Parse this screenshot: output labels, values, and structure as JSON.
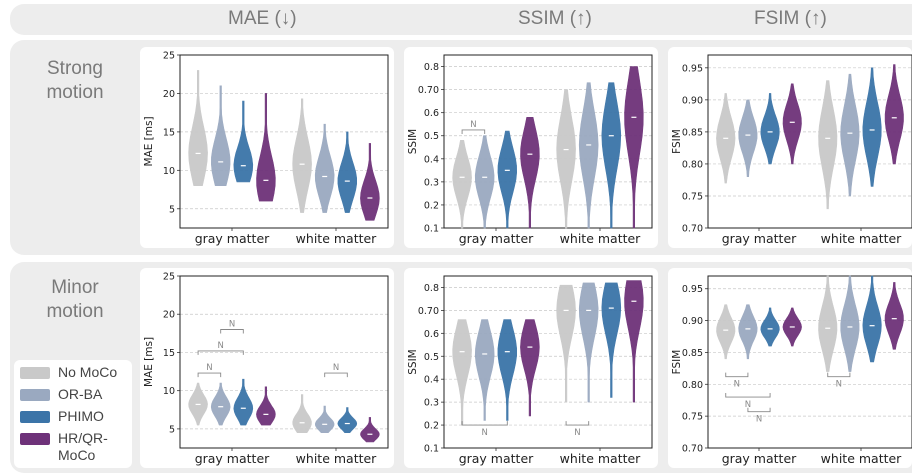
{
  "column_titles": [
    "MAE (↓)",
    "SSIM (↑)",
    "FSIM (↑)"
  ],
  "row_labels": [
    "Strong\nmotion",
    "Minor\nmotion"
  ],
  "legend": [
    {
      "label": "No MoCo",
      "color": "#c9c9c9"
    },
    {
      "label": "OR-BA",
      "color": "#9aa9c0"
    },
    {
      "label": "PHIMO",
      "color": "#3b74a8"
    },
    {
      "label": "HR/QR-\nMoCo",
      "color": "#6e3279"
    }
  ],
  "significance_label": "N",
  "chart_data": [
    {
      "type": "violin",
      "row": "Strong motion",
      "metric": "MAE (↓)",
      "ylabel": "MAE [ms]",
      "ylim": [
        2.5,
        25
      ],
      "yticks": [
        5,
        10,
        15,
        20,
        25
      ],
      "grid": true,
      "categories": [
        "gray matter",
        "white matter"
      ],
      "series": [
        {
          "name": "No MoCo",
          "values": [
            {
              "min": 8,
              "max": 23,
              "median": 12.2
            },
            {
              "min": 4.5,
              "max": 19.3,
              "median": 10.8
            }
          ]
        },
        {
          "name": "OR-BA",
          "values": [
            {
              "min": 8,
              "max": 21,
              "median": 11.1
            },
            {
              "min": 4.5,
              "max": 16,
              "median": 9.2
            }
          ]
        },
        {
          "name": "PHIMO",
          "values": [
            {
              "min": 8.5,
              "max": 19,
              "median": 10.6
            },
            {
              "min": 4.5,
              "max": 15,
              "median": 8.6
            }
          ]
        },
        {
          "name": "HR/QR-MoCo",
          "values": [
            {
              "min": 6,
              "max": 20,
              "median": 8.7
            },
            {
              "min": 3.5,
              "max": 13.5,
              "median": 6.4
            }
          ]
        }
      ],
      "significance": []
    },
    {
      "type": "violin",
      "row": "Strong motion",
      "metric": "SSIM (↑)",
      "ylabel": "SSIM",
      "ylim": [
        0.1,
        0.85
      ],
      "yticks": [
        0.1,
        0.2,
        0.3,
        0.4,
        0.5,
        0.6,
        0.7,
        0.8
      ],
      "grid": true,
      "categories": [
        "gray matter",
        "white matter"
      ],
      "series": [
        {
          "name": "No MoCo",
          "values": [
            {
              "min": 0.1,
              "max": 0.48,
              "median": 0.32
            },
            {
              "min": 0.1,
              "max": 0.7,
              "median": 0.44
            }
          ]
        },
        {
          "name": "OR-BA",
          "values": [
            {
              "min": 0.1,
              "max": 0.5,
              "median": 0.32
            },
            {
              "min": 0.1,
              "max": 0.73,
              "median": 0.46
            }
          ]
        },
        {
          "name": "PHIMO",
          "values": [
            {
              "min": 0.1,
              "max": 0.52,
              "median": 0.35
            },
            {
              "min": 0.1,
              "max": 0.73,
              "median": 0.5
            }
          ]
        },
        {
          "name": "HR/QR-MoCo",
          "values": [
            {
              "min": 0.1,
              "max": 0.58,
              "median": 0.42
            },
            {
              "min": 0.1,
              "max": 0.8,
              "median": 0.58
            }
          ]
        }
      ],
      "significance": [
        {
          "category": "gray matter",
          "between": [
            "No MoCo",
            "OR-BA"
          ],
          "level": 0.525,
          "label": "N"
        }
      ]
    },
    {
      "type": "violin",
      "row": "Strong motion",
      "metric": "FSIM (↑)",
      "ylabel": "FSIM",
      "ylim": [
        0.7,
        0.97
      ],
      "yticks": [
        0.7,
        0.75,
        0.8,
        0.85,
        0.9,
        0.95
      ],
      "grid": true,
      "categories": [
        "gray matter",
        "white matter"
      ],
      "series": [
        {
          "name": "No MoCo",
          "values": [
            {
              "min": 0.77,
              "max": 0.91,
              "median": 0.84
            },
            {
              "min": 0.73,
              "max": 0.93,
              "median": 0.84
            }
          ]
        },
        {
          "name": "OR-BA",
          "values": [
            {
              "min": 0.78,
              "max": 0.9,
              "median": 0.845
            },
            {
              "min": 0.75,
              "max": 0.94,
              "median": 0.848
            }
          ]
        },
        {
          "name": "PHIMO",
          "values": [
            {
              "min": 0.8,
              "max": 0.91,
              "median": 0.85
            },
            {
              "min": 0.765,
              "max": 0.95,
              "median": 0.853
            }
          ]
        },
        {
          "name": "HR/QR-MoCo",
          "values": [
            {
              "min": 0.8,
              "max": 0.925,
              "median": 0.865
            },
            {
              "min": 0.8,
              "max": 0.955,
              "median": 0.872
            }
          ]
        }
      ],
      "significance": []
    },
    {
      "type": "violin",
      "row": "Minor motion",
      "metric": "MAE (↓)",
      "ylabel": "MAE [ms]",
      "ylim": [
        2.5,
        25
      ],
      "yticks": [
        5,
        10,
        15,
        20,
        25
      ],
      "grid": true,
      "categories": [
        "gray matter",
        "white matter"
      ],
      "series": [
        {
          "name": "No MoCo",
          "values": [
            {
              "min": 5.5,
              "max": 11,
              "median": 8.2
            },
            {
              "min": 4.5,
              "max": 9.5,
              "median": 5.8
            }
          ]
        },
        {
          "name": "OR-BA",
          "values": [
            {
              "min": 5.5,
              "max": 11,
              "median": 7.9
            },
            {
              "min": 4.5,
              "max": 8,
              "median": 5.6
            }
          ]
        },
        {
          "name": "PHIMO",
          "values": [
            {
              "min": 5.5,
              "max": 11.5,
              "median": 7.7
            },
            {
              "min": 4.5,
              "max": 7.8,
              "median": 5.7
            }
          ]
        },
        {
          "name": "HR/QR-MoCo",
          "values": [
            {
              "min": 5.5,
              "max": 10.5,
              "median": 6.9
            },
            {
              "min": 3.3,
              "max": 6.5,
              "median": 4.3
            }
          ]
        }
      ],
      "significance": [
        {
          "category": "gray matter",
          "between": [
            "No MoCo",
            "OR-BA"
          ],
          "level": 12.3,
          "label": "N"
        },
        {
          "category": "gray matter",
          "between": [
            "No MoCo",
            "PHIMO"
          ],
          "level": 15.2,
          "label": "N"
        },
        {
          "category": "gray matter",
          "between": [
            "OR-BA",
            "PHIMO"
          ],
          "level": 18.0,
          "label": "N"
        },
        {
          "category": "white matter",
          "between": [
            "OR-BA",
            "PHIMO"
          ],
          "level": 12.3,
          "label": "N"
        }
      ]
    },
    {
      "type": "violin",
      "row": "Minor motion",
      "metric": "SSIM (↑)",
      "ylabel": "SSIM",
      "ylim": [
        0.1,
        0.85
      ],
      "yticks": [
        0.1,
        0.2,
        0.3,
        0.4,
        0.5,
        0.6,
        0.7,
        0.8
      ],
      "grid": true,
      "categories": [
        "gray matter",
        "white matter"
      ],
      "series": [
        {
          "name": "No MoCo",
          "values": [
            {
              "min": 0.2,
              "max": 0.66,
              "median": 0.52
            },
            {
              "min": 0.3,
              "max": 0.81,
              "median": 0.7
            }
          ]
        },
        {
          "name": "OR-BA",
          "values": [
            {
              "min": 0.22,
              "max": 0.66,
              "median": 0.51
            },
            {
              "min": 0.3,
              "max": 0.82,
              "median": 0.7
            }
          ]
        },
        {
          "name": "PHIMO",
          "values": [
            {
              "min": 0.22,
              "max": 0.66,
              "median": 0.52
            },
            {
              "min": 0.32,
              "max": 0.82,
              "median": 0.71
            }
          ]
        },
        {
          "name": "HR/QR-MoCo",
          "values": [
            {
              "min": 0.24,
              "max": 0.66,
              "median": 0.54
            },
            {
              "min": 0.3,
              "max": 0.83,
              "median": 0.74
            }
          ]
        }
      ],
      "significance": [
        {
          "category": "gray matter",
          "between": [
            "No MoCo",
            "PHIMO"
          ],
          "level": 0.2,
          "label": "N",
          "below": true
        },
        {
          "category": "white matter",
          "between": [
            "No MoCo",
            "OR-BA"
          ],
          "level": 0.2,
          "label": "N",
          "below": true
        }
      ]
    },
    {
      "type": "violin",
      "row": "Minor motion",
      "metric": "FSIM (↑)",
      "ylabel": "FSIM",
      "ylim": [
        0.7,
        0.97
      ],
      "yticks": [
        0.7,
        0.75,
        0.8,
        0.85,
        0.9,
        0.95
      ],
      "grid": true,
      "categories": [
        "gray matter",
        "white matter"
      ],
      "series": [
        {
          "name": "No MoCo",
          "values": [
            {
              "min": 0.84,
              "max": 0.925,
              "median": 0.885
            },
            {
              "min": 0.82,
              "max": 0.97,
              "median": 0.888
            }
          ]
        },
        {
          "name": "OR-BA",
          "values": [
            {
              "min": 0.84,
              "max": 0.925,
              "median": 0.887
            },
            {
              "min": 0.82,
              "max": 0.97,
              "median": 0.89
            }
          ]
        },
        {
          "name": "PHIMO",
          "values": [
            {
              "min": 0.86,
              "max": 0.92,
              "median": 0.887
            },
            {
              "min": 0.835,
              "max": 0.97,
              "median": 0.892
            }
          ]
        },
        {
          "name": "HR/QR-MoCo",
          "values": [
            {
              "min": 0.86,
              "max": 0.92,
              "median": 0.89
            },
            {
              "min": 0.855,
              "max": 0.96,
              "median": 0.903
            }
          ]
        }
      ],
      "significance": [
        {
          "category": "gray matter",
          "between": [
            "No MoCo",
            "OR-BA"
          ],
          "level": 0.812,
          "label": "N",
          "below": true
        },
        {
          "category": "gray matter",
          "between": [
            "No MoCo",
            "PHIMO"
          ],
          "level": 0.78,
          "label": "N",
          "below": true
        },
        {
          "category": "gray matter",
          "between": [
            "OR-BA",
            "PHIMO"
          ],
          "level": 0.757,
          "label": "N",
          "below": true
        },
        {
          "category": "white matter",
          "between": [
            "No MoCo",
            "OR-BA"
          ],
          "level": 0.812,
          "label": "N",
          "below": true
        }
      ]
    }
  ]
}
